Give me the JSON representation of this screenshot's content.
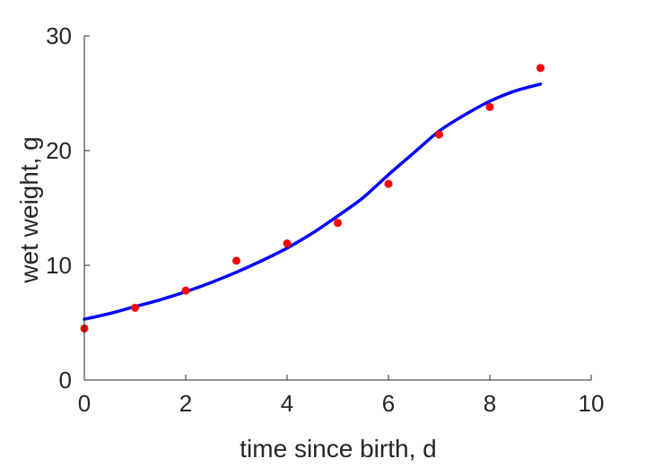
{
  "chart_data": {
    "type": "scatter",
    "title": "",
    "xlabel": "time since birth, d",
    "ylabel": "wet weight, g",
    "xlim": [
      0,
      10
    ],
    "ylim": [
      0,
      30
    ],
    "xticks": [
      0,
      2,
      4,
      6,
      8,
      10
    ],
    "yticks": [
      0,
      10,
      20,
      30
    ],
    "grid": false,
    "colors": {
      "points": "#ff0000",
      "fit": "#0000ff",
      "axes": "#262626"
    },
    "series": [
      {
        "kind": "points",
        "x": [
          0,
          1,
          2,
          3,
          4,
          5,
          6,
          7,
          8,
          9
        ],
        "y": [
          4.5,
          6.3,
          7.8,
          10.4,
          11.9,
          13.7,
          17.1,
          21.4,
          23.8,
          27.2
        ]
      },
      {
        "kind": "line",
        "x": [
          0,
          0.5,
          1,
          1.5,
          2,
          2.5,
          3,
          3.5,
          4,
          4.5,
          5,
          5.5,
          6,
          6.5,
          7,
          7.5,
          8,
          8.5,
          9
        ],
        "y": [
          5.3,
          5.8,
          6.4,
          7.0,
          7.7,
          8.5,
          9.4,
          10.4,
          11.5,
          12.8,
          14.3,
          15.9,
          17.9,
          19.8,
          21.7,
          23.1,
          24.3,
          25.2,
          25.8
        ]
      }
    ]
  }
}
